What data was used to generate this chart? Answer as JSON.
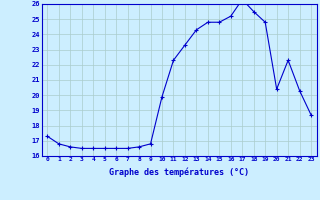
{
  "hours": [
    0,
    1,
    2,
    3,
    4,
    5,
    6,
    7,
    8,
    9,
    10,
    11,
    12,
    13,
    14,
    15,
    16,
    17,
    18,
    19,
    20,
    21,
    22,
    23
  ],
  "temps": [
    17.3,
    16.8,
    16.6,
    16.5,
    16.5,
    16.5,
    16.5,
    16.5,
    16.6,
    16.8,
    19.9,
    22.3,
    23.3,
    24.3,
    24.8,
    24.8,
    25.2,
    26.3,
    25.5,
    24.8,
    20.4,
    22.3,
    20.3,
    18.7
  ],
  "ylim": [
    16,
    26
  ],
  "yticks": [
    16,
    17,
    18,
    19,
    20,
    21,
    22,
    23,
    24,
    25,
    26
  ],
  "xlabel": "Graphe des températures (°C)",
  "line_color": "#0000cc",
  "marker": "+",
  "bg_color": "#cceeff",
  "grid_color": "#aacccc",
  "axis_color": "#0000cc",
  "tick_color": "#0000cc",
  "label_color": "#0000cc"
}
